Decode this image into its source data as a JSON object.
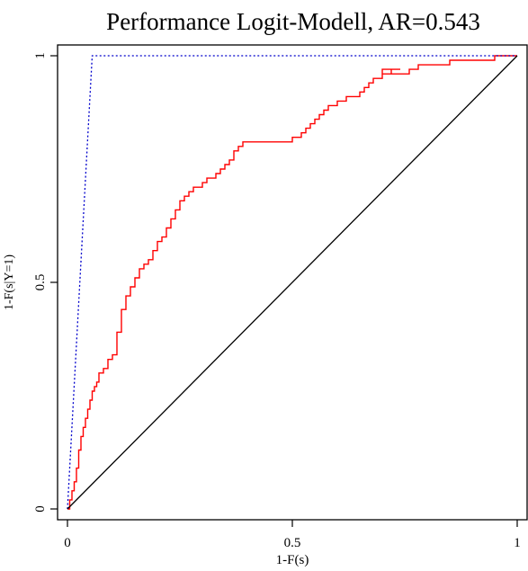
{
  "chart_data": {
    "type": "line",
    "title": "Performance Logit-Modell, AR=0.543",
    "xlabel": "1-F(s)",
    "ylabel": "1-F(s|Y=1)",
    "xlim": [
      0,
      1
    ],
    "ylim": [
      0,
      1
    ],
    "x_ticks": [
      0,
      0.5,
      1
    ],
    "y_ticks": [
      0,
      0.5,
      1
    ],
    "x_tick_labels": [
      "0",
      "0.5",
      "1"
    ],
    "y_tick_labels": [
      "0",
      "0.5",
      "1"
    ],
    "grid": false,
    "series": [
      {
        "color": "#ff0000",
        "style": "solid",
        "x": [
          0,
          0.005,
          0.01,
          0.015,
          0.02,
          0.025,
          0.03,
          0.035,
          0.04,
          0.045,
          0.05,
          0.055,
          0.06,
          0.065,
          0.07,
          0.08,
          0.09,
          0.1,
          0.11,
          0.12,
          0.13,
          0.14,
          0.15,
          0.16,
          0.17,
          0.18,
          0.19,
          0.2,
          0.21,
          0.22,
          0.23,
          0.24,
          0.25,
          0.26,
          0.27,
          0.28,
          0.29,
          0.3,
          0.31,
          0.32,
          0.33,
          0.34,
          0.35,
          0.36,
          0.37,
          0.38,
          0.39,
          0.4,
          0.41,
          0.42,
          0.45,
          0.48,
          0.5,
          0.52,
          0.53,
          0.54,
          0.55,
          0.56,
          0.57,
          0.58,
          0.6,
          0.62,
          0.64,
          0.65,
          0.66,
          0.67,
          0.68,
          0.7,
          0.72,
          0.74,
          0.7,
          0.76,
          0.78,
          0.8,
          0.82,
          0.85,
          0.88,
          0.9,
          0.92,
          0.95,
          0.97,
          1.0
        ],
        "y": [
          0,
          0.02,
          0.04,
          0.06,
          0.09,
          0.13,
          0.16,
          0.18,
          0.2,
          0.22,
          0.24,
          0.26,
          0.27,
          0.28,
          0.3,
          0.31,
          0.33,
          0.34,
          0.39,
          0.44,
          0.47,
          0.49,
          0.51,
          0.53,
          0.54,
          0.55,
          0.57,
          0.59,
          0.6,
          0.62,
          0.64,
          0.66,
          0.68,
          0.69,
          0.7,
          0.71,
          0.71,
          0.72,
          0.73,
          0.73,
          0.74,
          0.75,
          0.76,
          0.77,
          0.79,
          0.8,
          0.81,
          0.81,
          0.81,
          0.81,
          0.81,
          0.81,
          0.82,
          0.83,
          0.84,
          0.85,
          0.86,
          0.87,
          0.88,
          0.89,
          0.9,
          0.91,
          0.91,
          0.92,
          0.93,
          0.94,
          0.95,
          0.96,
          0.97,
          0.97,
          0.96,
          0.97,
          0.98,
          0.98,
          0.98,
          0.99,
          0.99,
          0.99,
          0.99,
          1.0,
          1.0,
          1.0
        ]
      },
      {
        "color": "#0000cc",
        "style": "dotted",
        "x": [
          0,
          0.055,
          1
        ],
        "y": [
          0,
          1,
          1
        ]
      },
      {
        "color": "#000000",
        "style": "solid",
        "x": [
          0,
          1
        ],
        "y": [
          0,
          1
        ]
      }
    ]
  }
}
